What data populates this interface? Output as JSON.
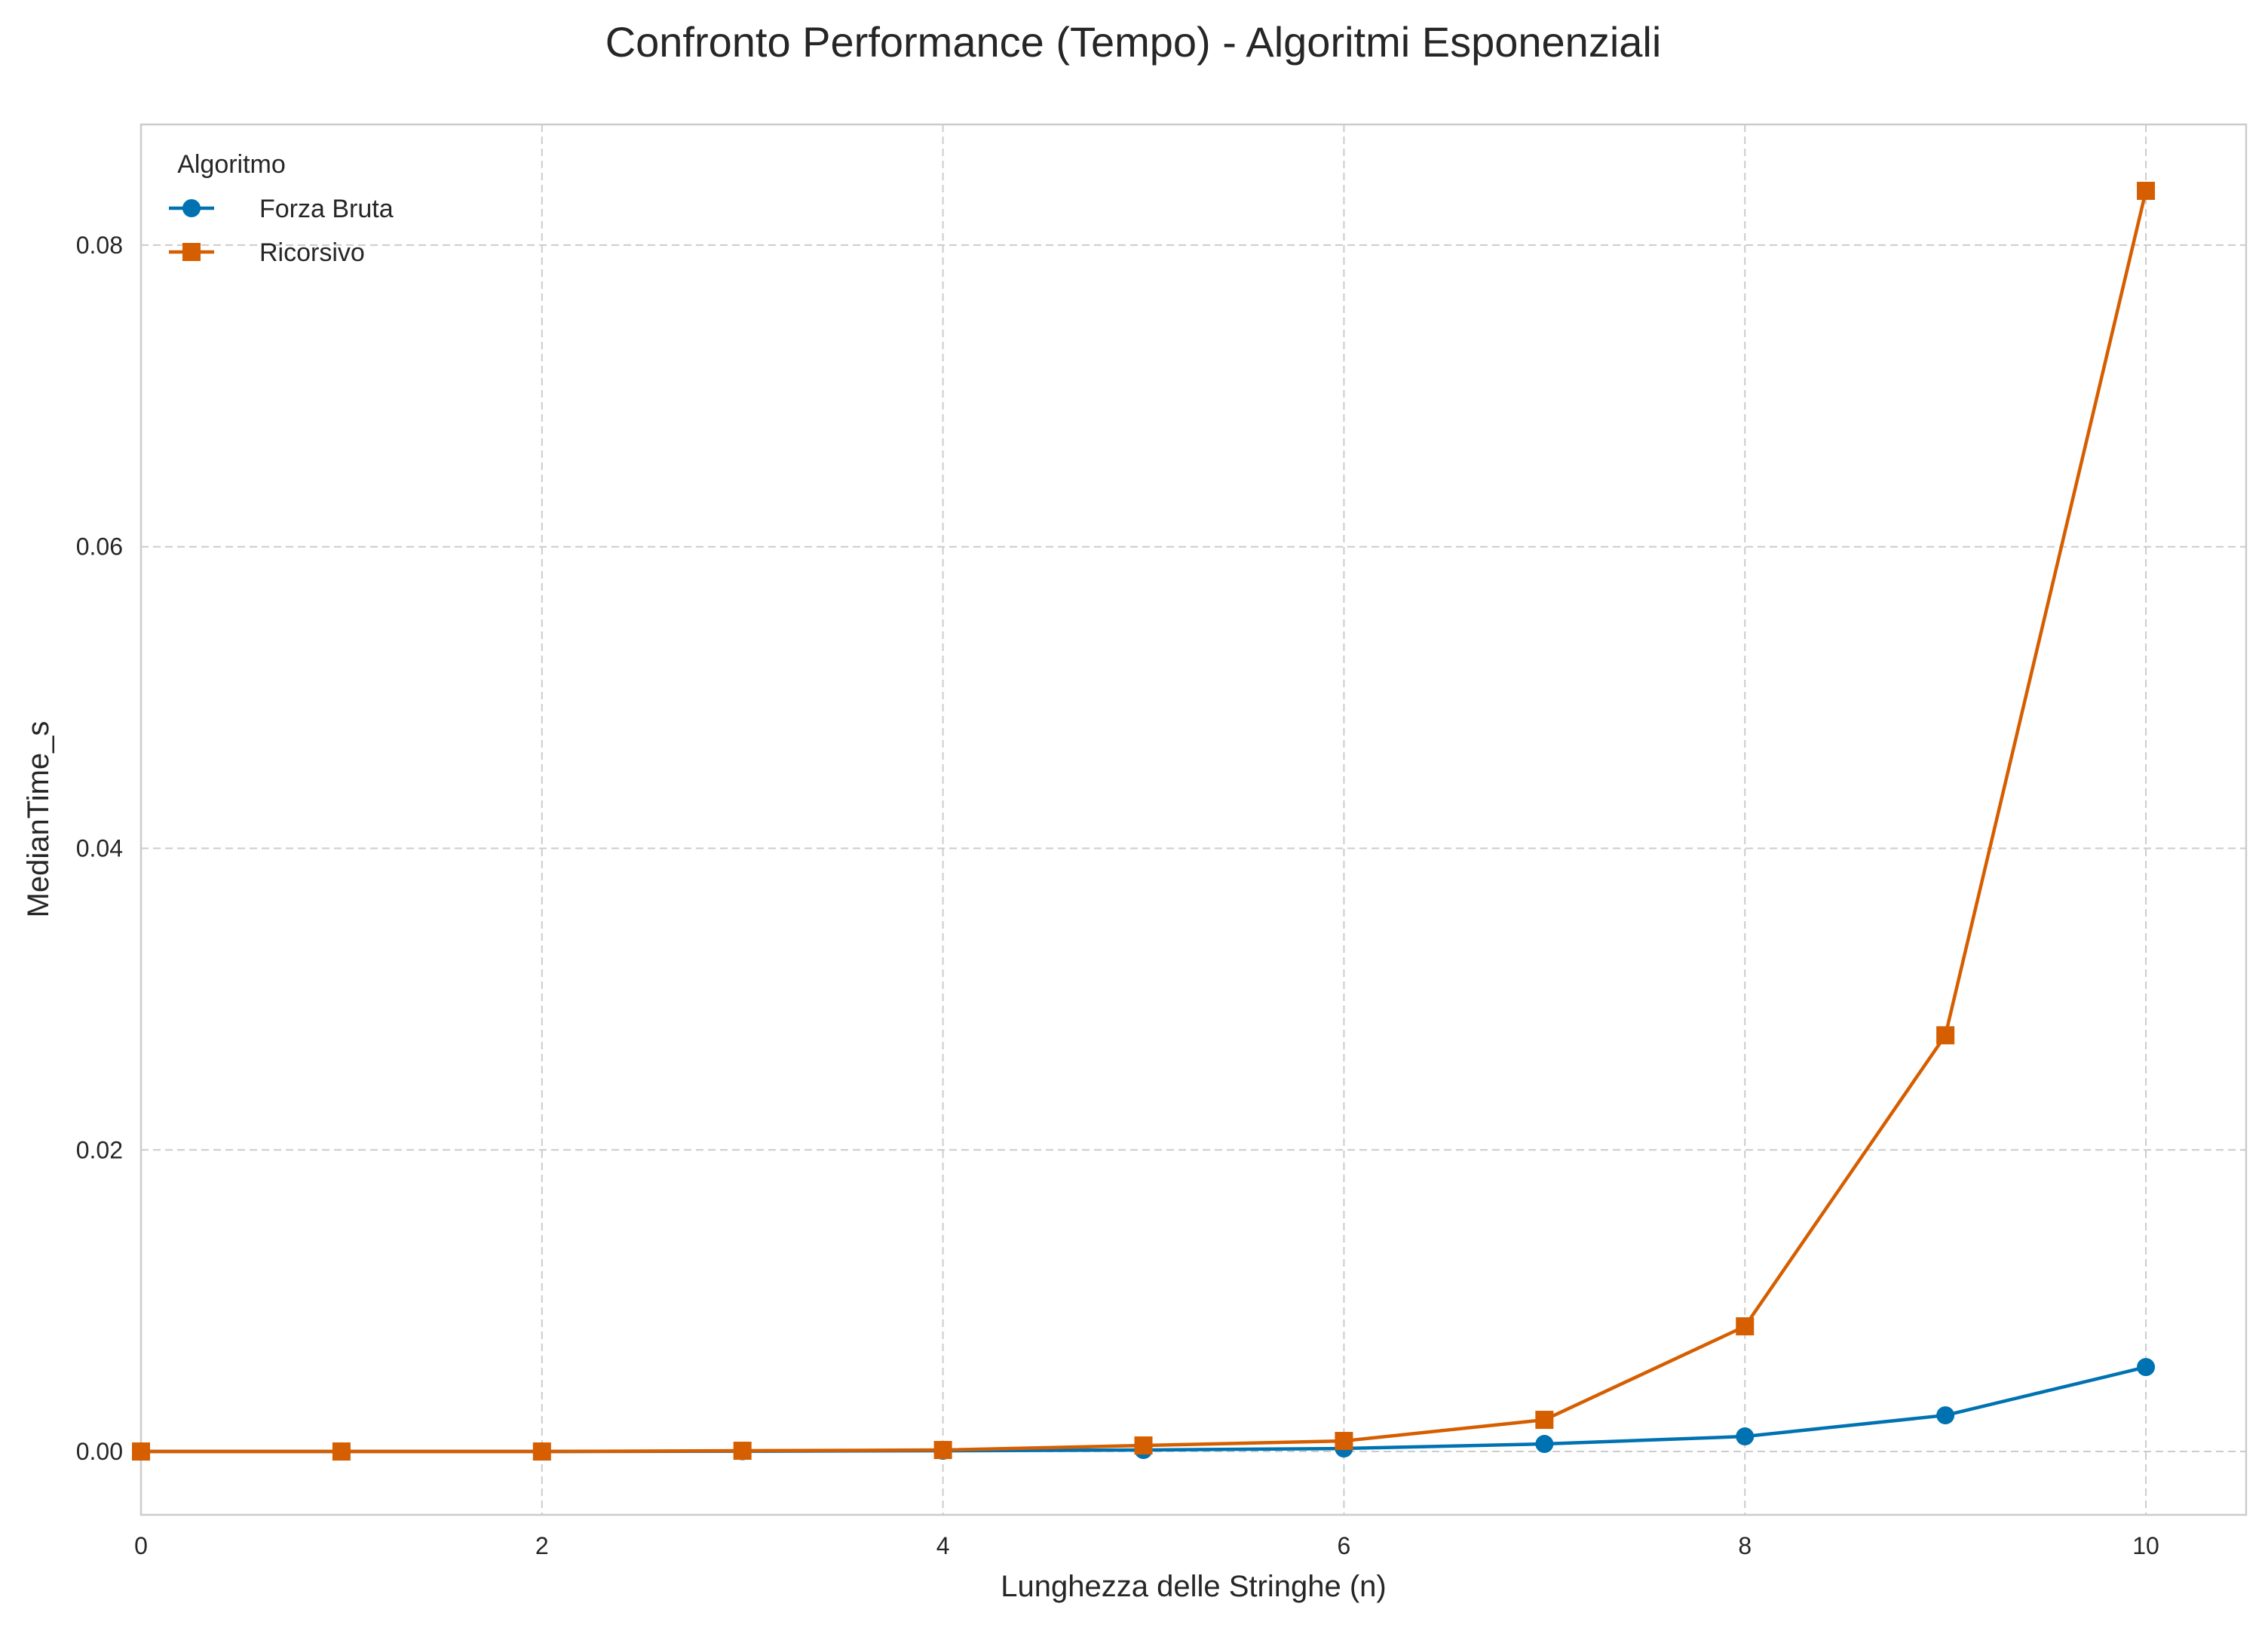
{
  "chart_data": {
    "type": "line",
    "title": "Confronto Performance (Tempo) - Algoritmi Esponenziali",
    "xlabel": "Lunghezza delle Stringhe (n)",
    "ylabel": "MedianTime_s",
    "x": [
      0,
      1,
      2,
      3,
      4,
      5,
      6,
      7,
      8,
      9,
      10
    ],
    "xlim": [
      0,
      10.5
    ],
    "ylim": [
      -0.0042,
      0.088
    ],
    "xticks": [
      0,
      2,
      4,
      6,
      8,
      10
    ],
    "xtick_labels": [
      "0",
      "2",
      "4",
      "6",
      "8",
      "10"
    ],
    "yticks": [
      0,
      0.02,
      0.04,
      0.06,
      0.08
    ],
    "ytick_labels": [
      "0.00",
      "0.02",
      "0.04",
      "0.06",
      "0.08"
    ],
    "grid": true,
    "legend": {
      "title": "Algoritmo",
      "placement": "top-left"
    },
    "series": [
      {
        "name": "Forza Bruta",
        "marker": "circle",
        "color": "#0072B2",
        "values": [
          0.0,
          0.0,
          0.0,
          2e-05,
          5e-05,
          0.0001,
          0.0002,
          0.0005,
          0.001,
          0.0024,
          0.0056
        ]
      },
      {
        "name": "Ricorsivo",
        "marker": "square",
        "color": "#D55E00",
        "values": [
          0.0,
          0.0,
          0.0,
          5e-05,
          0.0001,
          0.0004,
          0.0007,
          0.0021,
          0.0083,
          0.0276,
          0.0836
        ]
      }
    ]
  }
}
